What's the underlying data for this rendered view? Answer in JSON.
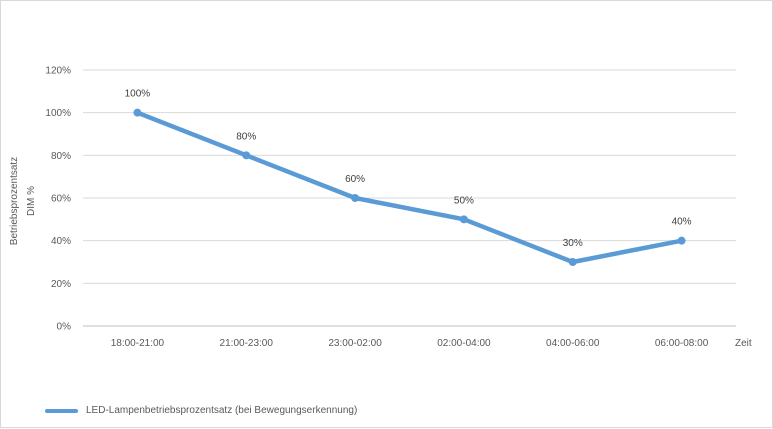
{
  "chart_data": {
    "type": "line",
    "categories": [
      "18:00-21:00",
      "21:00-23:00",
      "23:00-02:00",
      "02:00-04:00",
      "04:00-06:00",
      "06:00-08:00"
    ],
    "series": [
      {
        "name": "LED-Lampenbetriebsprozentsatz (bei Bewegungserkennung)",
        "values": [
          100,
          80,
          60,
          50,
          30,
          40
        ],
        "labels": [
          "100%",
          "80%",
          "60%",
          "50%",
          "30%",
          "40%"
        ],
        "color": "#5b9bd5"
      }
    ],
    "ylim": [
      0,
      120
    ],
    "yticks": [
      "0%",
      "20%",
      "40%",
      "60%",
      "80%",
      "100%",
      "120%"
    ],
    "ylabel": "Betriebsprozentsatz",
    "ylabel2": "DIM %",
    "xlabel": "Zeit",
    "grid": true,
    "legend_position": "bottom-left"
  }
}
